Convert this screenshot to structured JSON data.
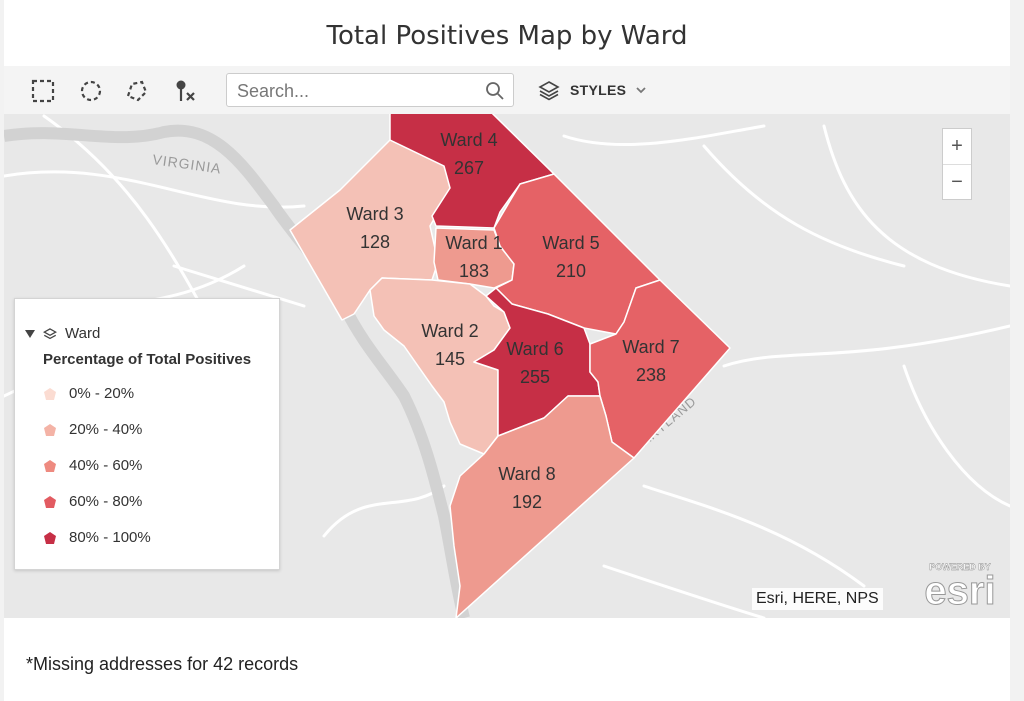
{
  "title": "Total Positives Map by Ward",
  "toolbar": {
    "tools": [
      "rect-select-icon",
      "circle-select-icon",
      "lasso-select-icon",
      "clear-pin-icon"
    ],
    "search_placeholder": "Search...",
    "styles_label": "STYLES"
  },
  "map": {
    "place_labels": {
      "virginia": "VIRGINIA",
      "maryland": "MARYLAND"
    },
    "zoom": {
      "in": "+",
      "out": "−"
    },
    "attribution": "Esri, HERE, NPS",
    "logo_small": "POWERED BY",
    "logo_big": "esri",
    "wards": [
      {
        "name": "Ward 4",
        "value": "267",
        "color": "#c62f46"
      },
      {
        "name": "Ward 3",
        "value": "128",
        "color": "#f4c1b6"
      },
      {
        "name": "Ward 1",
        "value": "183",
        "color": "#ee9a8f"
      },
      {
        "name": "Ward 5",
        "value": "210",
        "color": "#e56266"
      },
      {
        "name": "Ward 2",
        "value": "145",
        "color": "#f4c1b6"
      },
      {
        "name": "Ward 6",
        "value": "255",
        "color": "#c62f46"
      },
      {
        "name": "Ward 7",
        "value": "238",
        "color": "#e56266"
      },
      {
        "name": "Ward 8",
        "value": "192",
        "color": "#ee9a8f"
      }
    ]
  },
  "legend": {
    "layer": "Ward",
    "heading": "Percentage of Total Positives",
    "items": [
      {
        "label": "0% - 20%",
        "color": "#fbdcd2"
      },
      {
        "label": "20% - 40%",
        "color": "#f4b3a6"
      },
      {
        "label": "40% - 60%",
        "color": "#ee8a80"
      },
      {
        "label": "60% - 80%",
        "color": "#e25b61"
      },
      {
        "label": "80% - 100%",
        "color": "#c62f46"
      }
    ]
  },
  "footer": {
    "note": "*Missing addresses for 42 records"
  }
}
